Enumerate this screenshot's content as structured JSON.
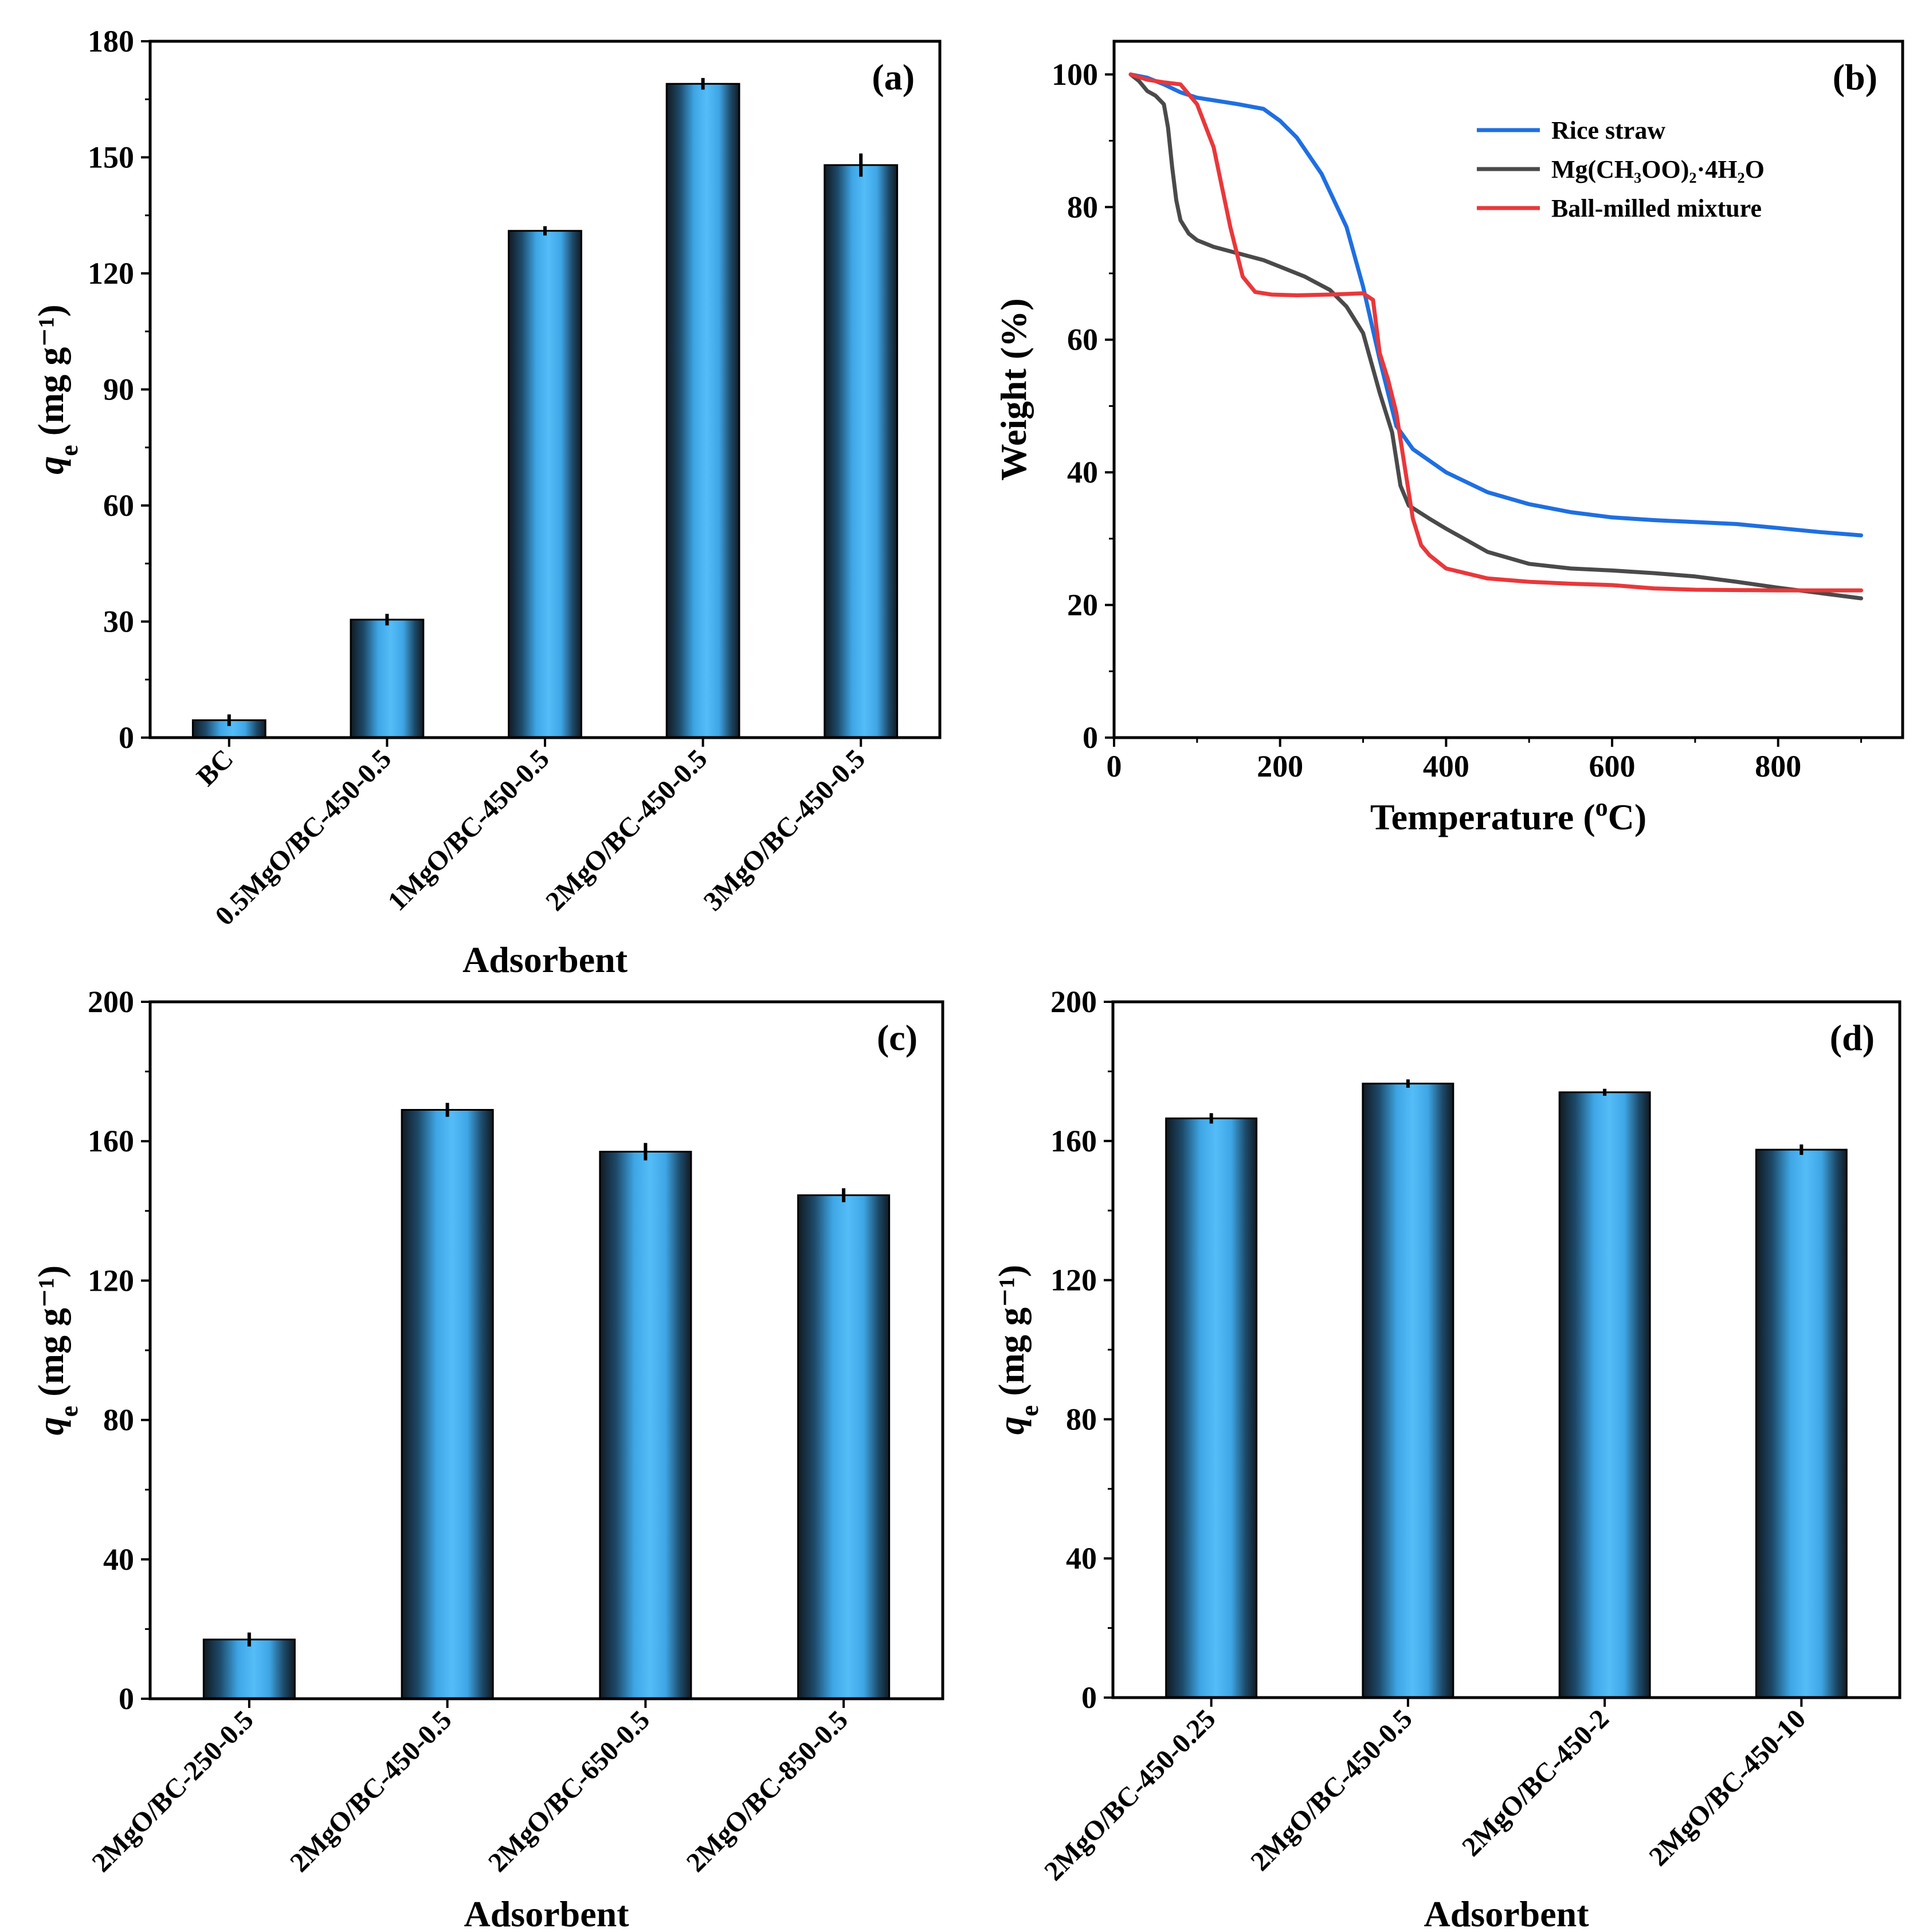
{
  "chart_data": [
    {
      "panel": "a",
      "type": "bar",
      "tag": "(a)",
      "categories": [
        "BC",
        "0.5MgO/BC-450-0.5",
        "1MgO/BC-450-0.5",
        "2MgO/BC-450-0.5",
        "3MgO/BC-450-0.5"
      ],
      "values": [
        4.5,
        30.5,
        131,
        169,
        148
      ],
      "errors": [
        1.5,
        1.5,
        1.2,
        1.5,
        3
      ],
      "ylim": [
        0,
        180
      ],
      "yticks": [
        0,
        30,
        60,
        90,
        120,
        150,
        180
      ],
      "xlabel": "Adsorbent",
      "ylabel": "q",
      "ylabel_sub": "e",
      "ylabel_unit": "(mg g⁻¹)"
    },
    {
      "panel": "b",
      "type": "line",
      "tag": "(b)",
      "xlim": [
        0,
        950
      ],
      "ylim": [
        0,
        105
      ],
      "xticks": [
        0,
        200,
        400,
        600,
        800
      ],
      "yticks": [
        0,
        20,
        40,
        60,
        80,
        100
      ],
      "xlabel": "Temperature (",
      "xlabel_sup": "o",
      "xlabel_end": "C)",
      "ylabel": "Weight (%)",
      "legend_position": "top-right",
      "series": [
        {
          "name": "Rice straw",
          "color": "#1f6fe0",
          "x": [
            20,
            40,
            60,
            80,
            100,
            150,
            180,
            200,
            220,
            250,
            280,
            300,
            320,
            340,
            360,
            400,
            450,
            500,
            550,
            600,
            650,
            700,
            750,
            800,
            850,
            900
          ],
          "y": [
            100,
            99.5,
            98.5,
            97.3,
            96.5,
            95.5,
            94.8,
            93,
            90.5,
            85,
            77,
            68,
            57,
            47,
            43.5,
            40,
            37,
            35.2,
            34,
            33.2,
            32.8,
            32.5,
            32.2,
            31.6,
            31,
            30.5
          ]
        },
        {
          "name": "Mg(CH₃OO)₂·4H₂O",
          "color": "#4a4a4a",
          "x": [
            20,
            30,
            40,
            50,
            60,
            65,
            70,
            75,
            80,
            90,
            100,
            120,
            150,
            180,
            200,
            230,
            260,
            280,
            300,
            320,
            335,
            345,
            355,
            380,
            400,
            450,
            500,
            550,
            600,
            650,
            700,
            750,
            800,
            850,
            900
          ],
          "y": [
            100,
            99,
            97.5,
            96.8,
            95.5,
            92,
            86,
            81,
            78,
            76,
            75,
            74,
            73,
            72,
            71,
            69.5,
            67.5,
            65,
            61,
            52,
            46,
            38,
            35,
            33,
            31.5,
            28,
            26.2,
            25.5,
            25.2,
            24.8,
            24.3,
            23.5,
            22.6,
            21.8,
            21
          ]
        },
        {
          "name": "Ball-milled mixture",
          "color": "#e8383b",
          "x": [
            20,
            40,
            60,
            80,
            90,
            100,
            120,
            140,
            155,
            170,
            190,
            220,
            260,
            300,
            312,
            320,
            330,
            340,
            350,
            360,
            370,
            380,
            400,
            450,
            500,
            550,
            600,
            650,
            700,
            800,
            900
          ],
          "y": [
            100,
            99.2,
            98.8,
            98.5,
            97,
            95.5,
            89,
            77,
            69.5,
            67.2,
            66.8,
            66.7,
            66.8,
            67,
            66,
            58,
            54,
            49,
            41,
            33,
            29,
            27.5,
            25.5,
            24,
            23.5,
            23.2,
            23,
            22.5,
            22.3,
            22.2,
            22.2
          ]
        }
      ]
    },
    {
      "panel": "c",
      "type": "bar",
      "tag": "(c)",
      "categories": [
        "2MgO/BC-250-0.5",
        "2MgO/BC-450-0.5",
        "2MgO/BC-650-0.5",
        "2MgO/BC-850-0.5"
      ],
      "values": [
        17,
        169,
        157,
        144.5
      ],
      "errors": [
        2,
        2,
        2.5,
        2
      ],
      "ylim": [
        0,
        200
      ],
      "yticks": [
        0,
        40,
        80,
        120,
        160,
        200
      ],
      "xlabel": "Adsorbent",
      "ylabel": "q",
      "ylabel_sub": "e",
      "ylabel_unit": "(mg g⁻¹)"
    },
    {
      "panel": "d",
      "type": "bar",
      "tag": "(d)",
      "categories": [
        "2MgO/BC-450-0.25",
        "2MgO/BC-450-0.5",
        "2MgO/BC-450-2",
        "2MgO/BC-450-10"
      ],
      "values": [
        166.5,
        176.5,
        174,
        157.5
      ],
      "errors": [
        1.5,
        1.2,
        1,
        1.5
      ],
      "ylim": [
        0,
        200
      ],
      "yticks": [
        0,
        40,
        80,
        120,
        160,
        200
      ],
      "xlabel": "Adsorbent",
      "ylabel": "q",
      "ylabel_sub": "e",
      "ylabel_unit": "(mg g⁻¹)"
    }
  ]
}
